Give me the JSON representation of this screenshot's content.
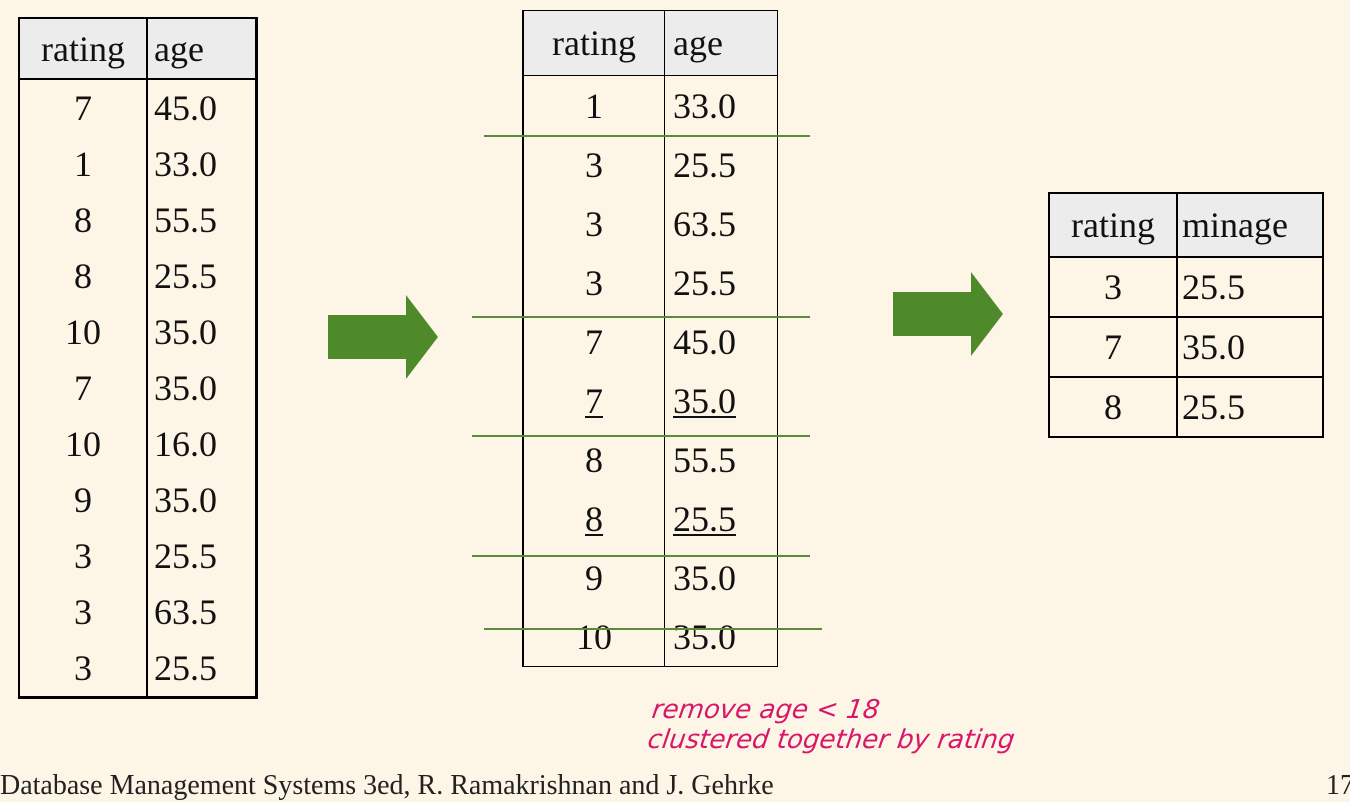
{
  "table1": {
    "headers": [
      "rating",
      "age"
    ],
    "rows": [
      [
        "7",
        "45.0"
      ],
      [
        "1",
        "33.0"
      ],
      [
        "8",
        "55.5"
      ],
      [
        "8",
        "25.5"
      ],
      [
        "10",
        "35.0"
      ],
      [
        "7",
        "35.0"
      ],
      [
        "10",
        "16.0"
      ],
      [
        "9",
        "35.0"
      ],
      [
        "3",
        "25.5"
      ],
      [
        "3",
        "63.5"
      ],
      [
        "3",
        "25.5"
      ]
    ]
  },
  "table2": {
    "headers": [
      "rating",
      "age"
    ],
    "rows": [
      [
        "1",
        "33.0"
      ],
      [
        "3",
        "25.5"
      ],
      [
        "3",
        "63.5"
      ],
      [
        "3",
        "25.5"
      ],
      [
        "7",
        "45.0"
      ],
      [
        "7",
        "35.0"
      ],
      [
        "8",
        "55.5"
      ],
      [
        "8",
        "25.5"
      ],
      [
        "9",
        "35.0"
      ],
      [
        "10",
        "35.0"
      ]
    ]
  },
  "table3": {
    "headers": [
      "rating",
      "minage"
    ],
    "rows": [
      [
        "3",
        "25.5"
      ],
      [
        "7",
        "35.0"
      ],
      [
        "8",
        "25.5"
      ]
    ]
  },
  "annotation": {
    "line1": "remove age < 18",
    "line2": "clustered together by rating"
  },
  "footer": {
    "text": "Database Management Systems 3ed, R. Ramakrishnan and J. Gehrke",
    "page": "17"
  },
  "colors": {
    "arrow": "#4f8a2a",
    "group_line": "#5a8a3a",
    "annotation": "#d8176a"
  },
  "icons": [
    "right-arrow-icon"
  ]
}
